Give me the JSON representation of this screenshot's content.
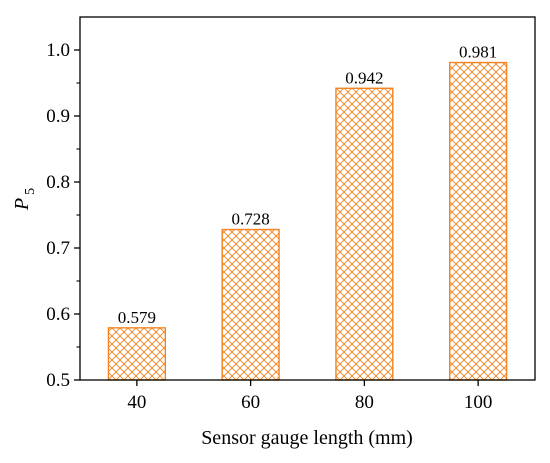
{
  "chart_data": {
    "type": "bar",
    "categories": [
      "40",
      "60",
      "80",
      "100"
    ],
    "values": [
      0.579,
      0.728,
      0.942,
      0.981
    ],
    "data_labels": [
      "0.579",
      "0.728",
      "0.942",
      "0.981"
    ],
    "xlabel": "Sensor gauge length (mm)",
    "ylabel": "P",
    "ylabel_subscript": "5",
    "ylim": [
      0.5,
      1.05
    ],
    "yticks": [
      "0.5",
      "0.6",
      "0.7",
      "0.8",
      "0.9",
      "1.0"
    ],
    "grid": false,
    "bar_color": "#f5821f",
    "bar_pattern": "crosshatch"
  }
}
